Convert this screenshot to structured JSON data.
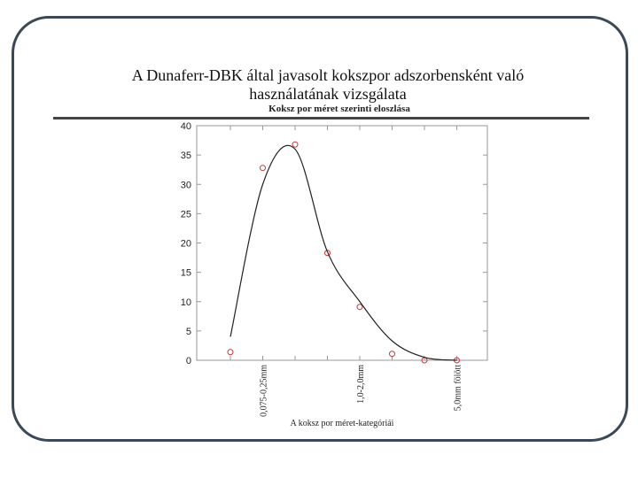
{
  "title": "A Dunaferr-DBK által javasolt kokszpor adszorbensként való használatának vizsgálata",
  "chart_data": {
    "type": "scatter",
    "title": "Koksz por méret szerinti eloszlása",
    "x_label": "A koksz por méret-kategóriái",
    "categories": [
      null,
      "0,075-0,25mm",
      null,
      null,
      "1,0-2,0mm",
      null,
      null,
      "5,0mm fölött"
    ],
    "series": [
      {
        "color": "#cc3333",
        "marker": "circle",
        "values": [
          1.4,
          32.8,
          36.8,
          18.3,
          9.1,
          1.1,
          0,
          0
        ]
      },
      {
        "color": "#222222",
        "smooth": true,
        "values": [
          4,
          30,
          36,
          18.5,
          10,
          3.3,
          0.5,
          0
        ]
      }
    ],
    "ylim": [
      0,
      40
    ],
    "yticks": [
      0,
      5,
      10,
      15,
      20,
      25,
      30,
      35,
      40
    ]
  }
}
